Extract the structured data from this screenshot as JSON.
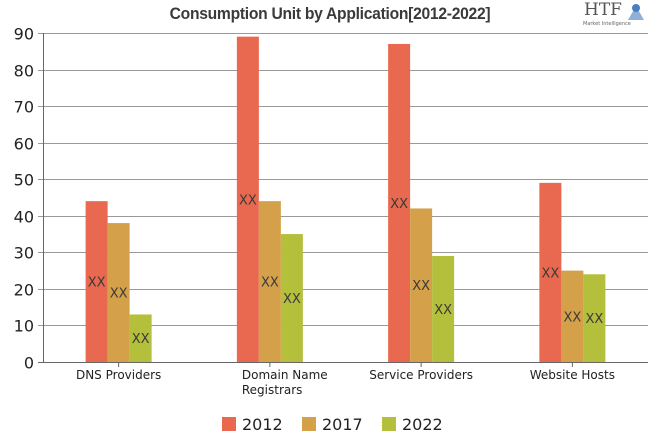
{
  "logo": {
    "text": "HTF",
    "subtext": "Market Intelligence"
  },
  "chart_data": {
    "type": "bar",
    "title": "Consumption Unit by  Application[2012-2022]",
    "xlabel": "",
    "ylabel": "",
    "ylim": [
      0,
      90
    ],
    "yticks": [
      0,
      10,
      20,
      30,
      40,
      50,
      60,
      70,
      80,
      90
    ],
    "grid": true,
    "legend_position": "bottom",
    "categories": [
      [
        "DNS Providers"
      ],
      [
        "Domain Name",
        "Registrars"
      ],
      [
        "Service Providers"
      ],
      [
        "Website Hosts"
      ]
    ],
    "series": [
      {
        "name": "2012",
        "color": "#e8694f",
        "values": [
          44,
          89,
          87,
          49
        ],
        "labels": [
          "XX",
          "XX",
          "XX",
          "XX"
        ]
      },
      {
        "name": "2017",
        "color": "#d4a04a",
        "values": [
          38,
          44,
          42,
          25
        ],
        "labels": [
          "XX",
          "XX",
          "XX",
          "XX"
        ]
      },
      {
        "name": "2022",
        "color": "#b4bf3c",
        "values": [
          13,
          35,
          29,
          24
        ],
        "labels": [
          "XX",
          "XX",
          "XX",
          "XX"
        ]
      }
    ]
  }
}
